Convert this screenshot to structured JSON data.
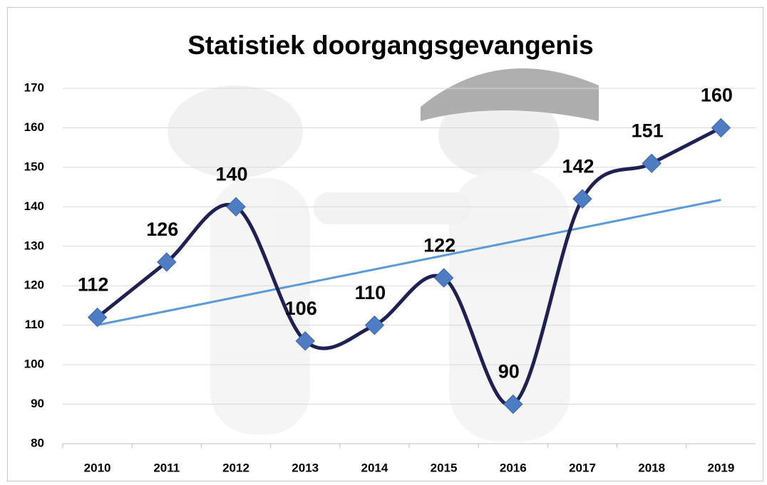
{
  "chart_data": {
    "type": "line",
    "title": "Statistiek doorgangsgevangenis",
    "categories": [
      "2010",
      "2011",
      "2012",
      "2013",
      "2014",
      "2015",
      "2016",
      "2017",
      "2018",
      "2019"
    ],
    "values": [
      112,
      126,
      140,
      106,
      110,
      122,
      90,
      142,
      151,
      160
    ],
    "color": "#1f2152",
    "marker_color": "#4f7dc4",
    "smooth": true,
    "trendline": "linear",
    "trendline_color": "#5b9bd5",
    "ylim": [
      80,
      170
    ],
    "yticks": [
      80,
      90,
      100,
      110,
      120,
      130,
      140,
      150,
      160,
      170
    ],
    "grid": true
  }
}
